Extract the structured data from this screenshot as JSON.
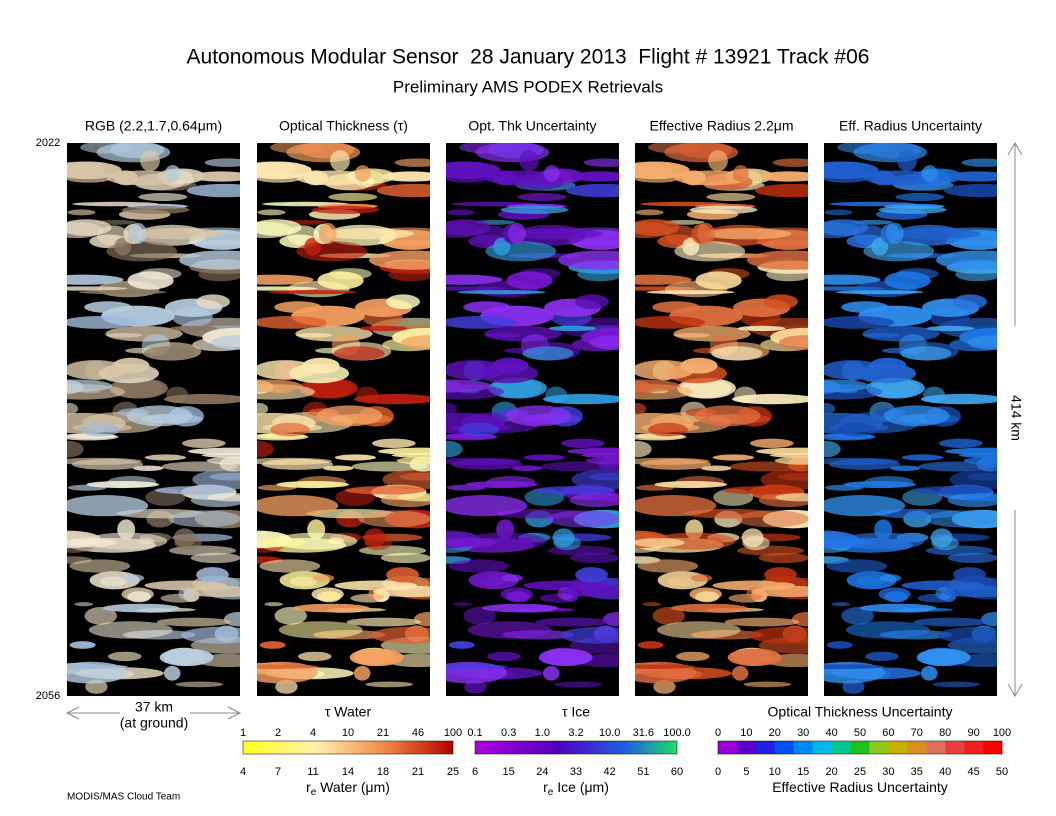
{
  "header": {
    "title": "Autonomous Modular Sensor  28 January 2013  Flight # 13921 Track #06",
    "subtitle": "Preliminary AMS PODEX Retrievals"
  },
  "panels": [
    {
      "title": "RGB (2.2,1.7,0.64μm)"
    },
    {
      "title": "Optical Thickness (τ)"
    },
    {
      "title": "Opt. Thk Uncertainty"
    },
    {
      "title": "Effective Radius 2.2μm"
    },
    {
      "title": "Eff. Radius Uncertainty"
    }
  ],
  "time_axis": {
    "start": "2022",
    "end": "2056"
  },
  "scale": {
    "along_track": "414 km",
    "cross_track": "37 km",
    "cross_track_note": "(at ground)"
  },
  "colorbars": [
    {
      "top_label": "τ Water",
      "top_ticks": [
        "1",
        "2",
        "4",
        "10",
        "21",
        "46",
        "100"
      ],
      "bottom_ticks": [
        "4",
        "7",
        "11",
        "14",
        "18",
        "21",
        "25"
      ],
      "bottom_label": {
        "symbol": "r",
        "subscript": "e",
        "text": " Water (μm)"
      }
    },
    {
      "top_label": "τ Ice",
      "top_ticks": [
        "0.1",
        "0.3",
        "1.0",
        "3.2",
        "10.0",
        "31.6",
        "100.0"
      ],
      "bottom_ticks": [
        "6",
        "15",
        "24",
        "33",
        "42",
        "51",
        "60"
      ],
      "bottom_label": {
        "symbol": "r",
        "subscript": "e",
        "text": " Ice (μm)"
      }
    },
    {
      "top_label": "Optical Thickness Uncertainty",
      "top_ticks": [
        "0",
        "10",
        "20",
        "30",
        "40",
        "50",
        "60",
        "70",
        "80",
        "90",
        "100"
      ],
      "bottom_ticks": [
        "0",
        "5",
        "10",
        "15",
        "20",
        "25",
        "30",
        "35",
        "40",
        "45",
        "50"
      ],
      "bottom_label": {
        "text": "Effective Radius Uncertainty"
      }
    }
  ],
  "footer": "MODIS/MAS Cloud Team"
}
